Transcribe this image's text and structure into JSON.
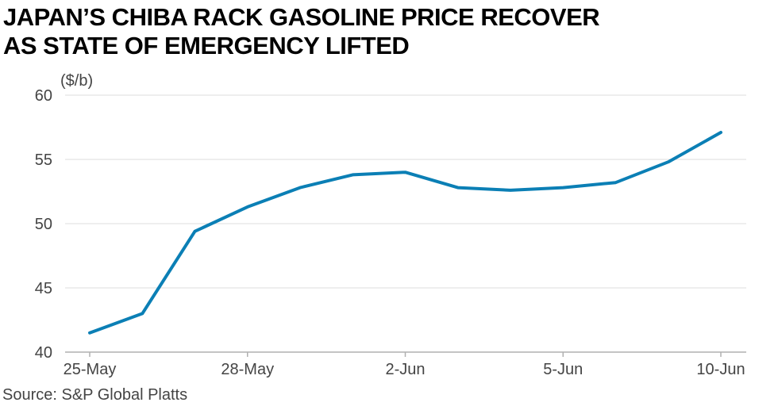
{
  "chart_data": {
    "type": "line",
    "title_lines": [
      "JAPAN’S CHIBA RACK GASOLINE PRICE RECOVER",
      "AS STATE OF EMERGENCY LIFTED"
    ],
    "ylabel": "($/b)",
    "xlabel": "",
    "ylim": [
      40,
      60
    ],
    "y_ticks": [
      "40",
      "45",
      "50",
      "55",
      "60"
    ],
    "x_tick_labels": [
      "25-May",
      "28-May",
      "2-Jun",
      "5-Jun",
      "10-Jun"
    ],
    "x": [
      "25-May",
      "26-May",
      "27-May",
      "28-May",
      "29-May",
      "1-Jun",
      "2-Jun",
      "3-Jun",
      "4-Jun",
      "5-Jun",
      "8-Jun",
      "9-Jun",
      "10-Jun"
    ],
    "series": [
      {
        "values": [
          41.5,
          43.0,
          49.4,
          51.3,
          52.8,
          53.8,
          54.0,
          52.8,
          52.6,
          52.8,
          53.2,
          54.8,
          57.1
        ]
      }
    ],
    "line_color": "#0b7fb5",
    "grid_color": "#dcdcdc",
    "grid": true,
    "source": "Source: S&P Global Platts"
  }
}
